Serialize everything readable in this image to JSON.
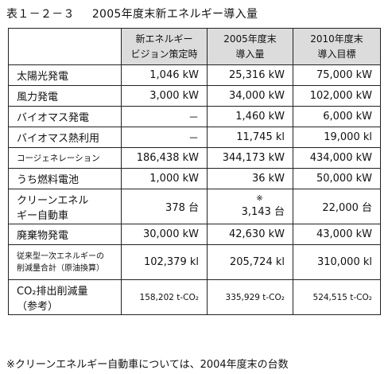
{
  "title": {
    "number": "表１－２－３",
    "text": "2005年度末新エネルギー導入量"
  },
  "table": {
    "columns": [
      {
        "line1": "新エネルギー",
        "line2": "ビジョン策定時"
      },
      {
        "line1": "2005年度末",
        "line2": "導入量"
      },
      {
        "line1": "2010年度末",
        "line2": "導入目標"
      }
    ],
    "rows": [
      {
        "label": "太陽光発電",
        "vision": "1,046 kW",
        "fy2005": "25,316 kW",
        "target2010": "75,000 kW"
      },
      {
        "label": "風力発電",
        "vision": "3,000 kW",
        "fy2005": "34,000 kW",
        "target2010": "102,000 kW"
      },
      {
        "label": "バイオマス発電",
        "vision": "－",
        "fy2005": "1,460 kW",
        "target2010": "6,000 kW"
      },
      {
        "label": "バイオマス熱利用",
        "vision": "－",
        "fy2005": "11,745 kl",
        "target2010": "19,000 kl"
      },
      {
        "label": "コージェネレーション",
        "vision": "186,438 kW",
        "fy2005": "344,173 kW",
        "target2010": "434,000 kW"
      },
      {
        "label": "うち燃料電池",
        "vision": "1,000 kW",
        "fy2005": "36 kW",
        "target2010": "50,000 kW"
      },
      {
        "label_line1": "クリーンエネル",
        "label_line2": "ギー自動車",
        "vision": "378 台",
        "fy2005_mark": "※",
        "fy2005": "3,143 台",
        "target2010": "22,000 台"
      },
      {
        "label": "廃棄物発電",
        "vision": "30,000 kW",
        "fy2005": "42,630 kW",
        "target2010": "43,000 kW"
      },
      {
        "label_line1": "従来型一次エネルギーの",
        "label_line2": "削減量合計（原油換算）",
        "vision": "102,379 kl",
        "fy2005": "205,724 kl",
        "target2010": "310,000 kl"
      },
      {
        "label_line1": "CO₂排出削減量",
        "label_line2": "（参考）",
        "vision": "158,202 t-CO₂",
        "fy2005": "335,929 t-CO₂",
        "target2010": "524,515 t-CO₂"
      }
    ]
  },
  "footnote": "※クリーンエネルギー自動車については、2004年度末の台数"
}
